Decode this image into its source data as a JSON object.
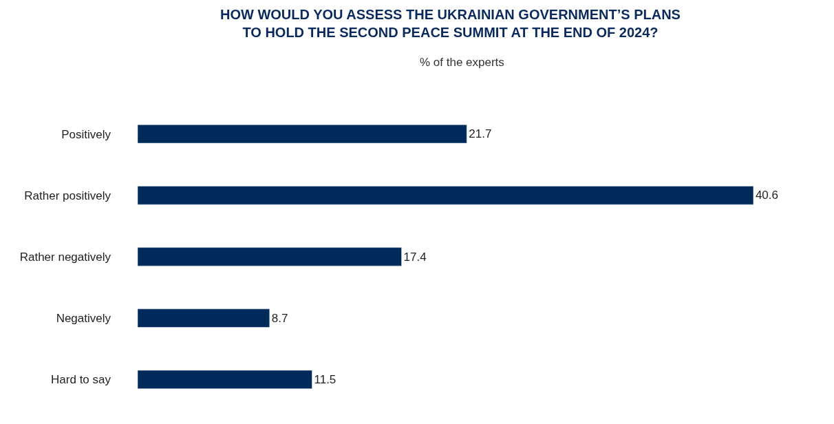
{
  "chart_data": {
    "type": "bar",
    "orientation": "horizontal",
    "title": "HOW WOULD YOU ASSESS THE UKRAINIAN GOVERNMENT’S PLANS\nTO HOLD THE SECOND PEACE SUMMIT AT THE END OF 2024?",
    "subtitle": "% of the experts",
    "tick_labels": "y",
    "categories": [
      "Positively",
      "Rather positively",
      "Rather negatively",
      "Negatively",
      "Hard to say"
    ],
    "values": [
      21.7,
      40.6,
      17.4,
      8.7,
      11.5
    ],
    "color": "#002a5a",
    "data_labels": true
  }
}
